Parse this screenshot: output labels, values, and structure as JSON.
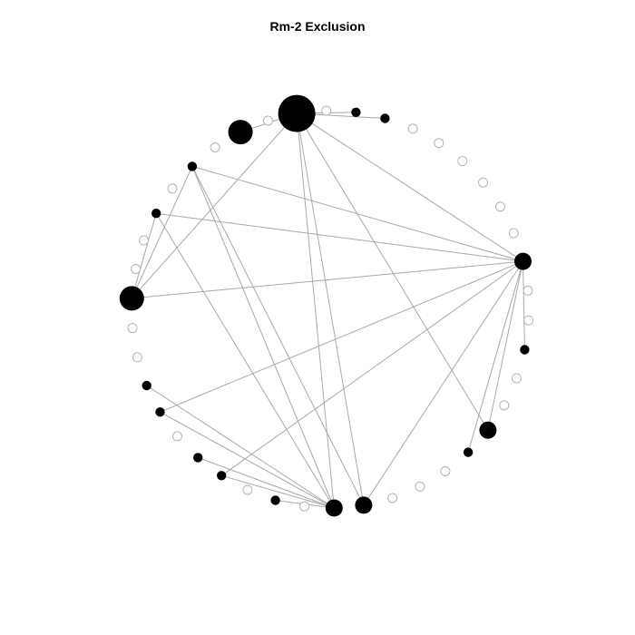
{
  "title": "Rm-2 Exclusion",
  "colors": {
    "background": "#ffffff",
    "edge": "#a8a8a8",
    "active_node_fill": "#000000",
    "inactive_node_stroke": "#b3b3b3"
  },
  "graph": {
    "layout": "circle",
    "nodes": [
      {
        "id": "n1",
        "active": true,
        "weight": 5
      },
      {
        "id": "n2",
        "active": false,
        "weight": 1
      },
      {
        "id": "n3",
        "active": true,
        "weight": 4
      },
      {
        "id": "n4",
        "active": false,
        "weight": 1
      },
      {
        "id": "n5",
        "active": true,
        "weight": 2
      },
      {
        "id": "n6",
        "active": false,
        "weight": 1
      },
      {
        "id": "n7",
        "active": true,
        "weight": 2
      },
      {
        "id": "n8",
        "active": false,
        "weight": 1
      },
      {
        "id": "n9",
        "active": false,
        "weight": 1
      },
      {
        "id": "n10",
        "active": true,
        "weight": 4
      },
      {
        "id": "n11",
        "active": false,
        "weight": 1
      },
      {
        "id": "n12",
        "active": false,
        "weight": 1
      },
      {
        "id": "n13",
        "active": true,
        "weight": 2
      },
      {
        "id": "n14",
        "active": true,
        "weight": 2
      },
      {
        "id": "n15",
        "active": false,
        "weight": 1
      },
      {
        "id": "n16",
        "active": true,
        "weight": 2
      },
      {
        "id": "n17",
        "active": true,
        "weight": 2
      },
      {
        "id": "n18",
        "active": false,
        "weight": 1
      },
      {
        "id": "n19",
        "active": true,
        "weight": 2
      },
      {
        "id": "n20",
        "active": false,
        "weight": 1
      },
      {
        "id": "n21",
        "active": true,
        "weight": 3
      },
      {
        "id": "n22",
        "active": true,
        "weight": 3
      },
      {
        "id": "n23",
        "active": false,
        "weight": 1
      },
      {
        "id": "n24",
        "active": false,
        "weight": 1
      },
      {
        "id": "n25",
        "active": false,
        "weight": 1
      },
      {
        "id": "n26",
        "active": true,
        "weight": 2
      },
      {
        "id": "n27",
        "active": true,
        "weight": 3
      },
      {
        "id": "n28",
        "active": false,
        "weight": 1
      },
      {
        "id": "n29",
        "active": false,
        "weight": 1
      },
      {
        "id": "n30",
        "active": true,
        "weight": 2
      },
      {
        "id": "n31",
        "active": false,
        "weight": 1
      },
      {
        "id": "n32",
        "active": false,
        "weight": 1
      },
      {
        "id": "n33",
        "active": true,
        "weight": 3
      },
      {
        "id": "n34",
        "active": false,
        "weight": 1
      },
      {
        "id": "n35",
        "active": false,
        "weight": 1
      },
      {
        "id": "n36",
        "active": false,
        "weight": 1
      },
      {
        "id": "n37",
        "active": false,
        "weight": 1
      },
      {
        "id": "n38",
        "active": false,
        "weight": 1
      },
      {
        "id": "n39",
        "active": false,
        "weight": 1
      },
      {
        "id": "n40",
        "active": true,
        "weight": 2
      },
      {
        "id": "n41",
        "active": true,
        "weight": 2
      },
      {
        "id": "n42",
        "active": false,
        "weight": 1
      }
    ],
    "edges": [
      [
        "n1",
        "n3"
      ],
      [
        "n1",
        "n10"
      ],
      [
        "n1",
        "n21"
      ],
      [
        "n1",
        "n22"
      ],
      [
        "n1",
        "n27"
      ],
      [
        "n1",
        "n33"
      ],
      [
        "n1",
        "n40"
      ],
      [
        "n1",
        "n41"
      ],
      [
        "n5",
        "n10"
      ],
      [
        "n5",
        "n21"
      ],
      [
        "n5",
        "n22"
      ],
      [
        "n5",
        "n33"
      ],
      [
        "n7",
        "n10"
      ],
      [
        "n7",
        "n21"
      ],
      [
        "n7",
        "n33"
      ],
      [
        "n10",
        "n33"
      ],
      [
        "n13",
        "n21"
      ],
      [
        "n14",
        "n21"
      ],
      [
        "n16",
        "n21"
      ],
      [
        "n17",
        "n21"
      ],
      [
        "n19",
        "n21"
      ],
      [
        "n33",
        "n14"
      ],
      [
        "n33",
        "n17"
      ],
      [
        "n33",
        "n22"
      ],
      [
        "n33",
        "n26"
      ],
      [
        "n33",
        "n27"
      ],
      [
        "n33",
        "n30"
      ]
    ]
  }
}
